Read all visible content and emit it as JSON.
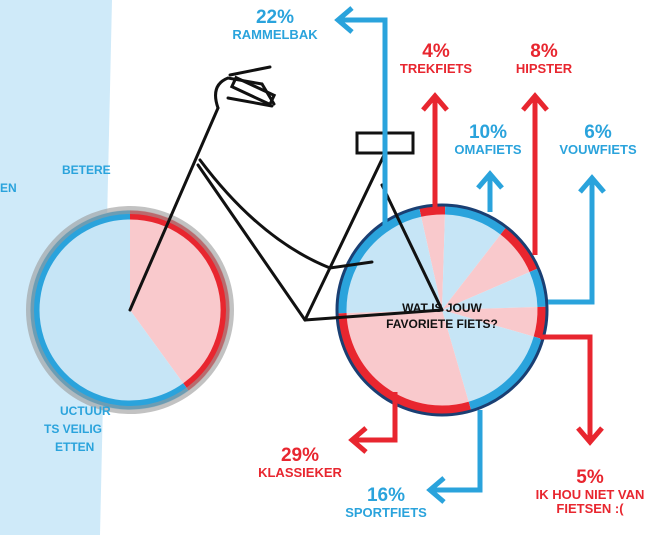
{
  "chart_data": [
    {
      "type": "pie",
      "title": "WAT IS JOUW FAVORIETE FIETS?",
      "categories": [
        "TREKFIETS",
        "OMAFIETS",
        "HIPSTER",
        "VOUWFIETS",
        "IK HOU NIET VAN FIETSEN :(",
        "SPORTFIETS",
        "KLASSIEKER",
        "RAMMELBAK"
      ],
      "values": [
        4,
        10,
        8,
        6,
        5,
        16,
        29,
        22
      ],
      "value_labels": [
        "4%",
        "10%",
        "8%",
        "6%",
        "5%",
        "16%",
        "29%",
        "22%"
      ],
      "colors": [
        "#e8262f",
        "#2aa3dc",
        "#e8262f",
        "#2aa3dc",
        "#e8262f",
        "#2aa3dc",
        "#e8262f",
        "#2aa3dc"
      ]
    },
    {
      "type": "pie",
      "values": [
        40,
        60
      ],
      "colors": [
        "#e8262f",
        "#2aa3dc"
      ]
    }
  ],
  "side_texts": [
    "BETERE",
    "EN",
    "UCTUUR",
    "TS VEILIG",
    "ETTEN"
  ]
}
